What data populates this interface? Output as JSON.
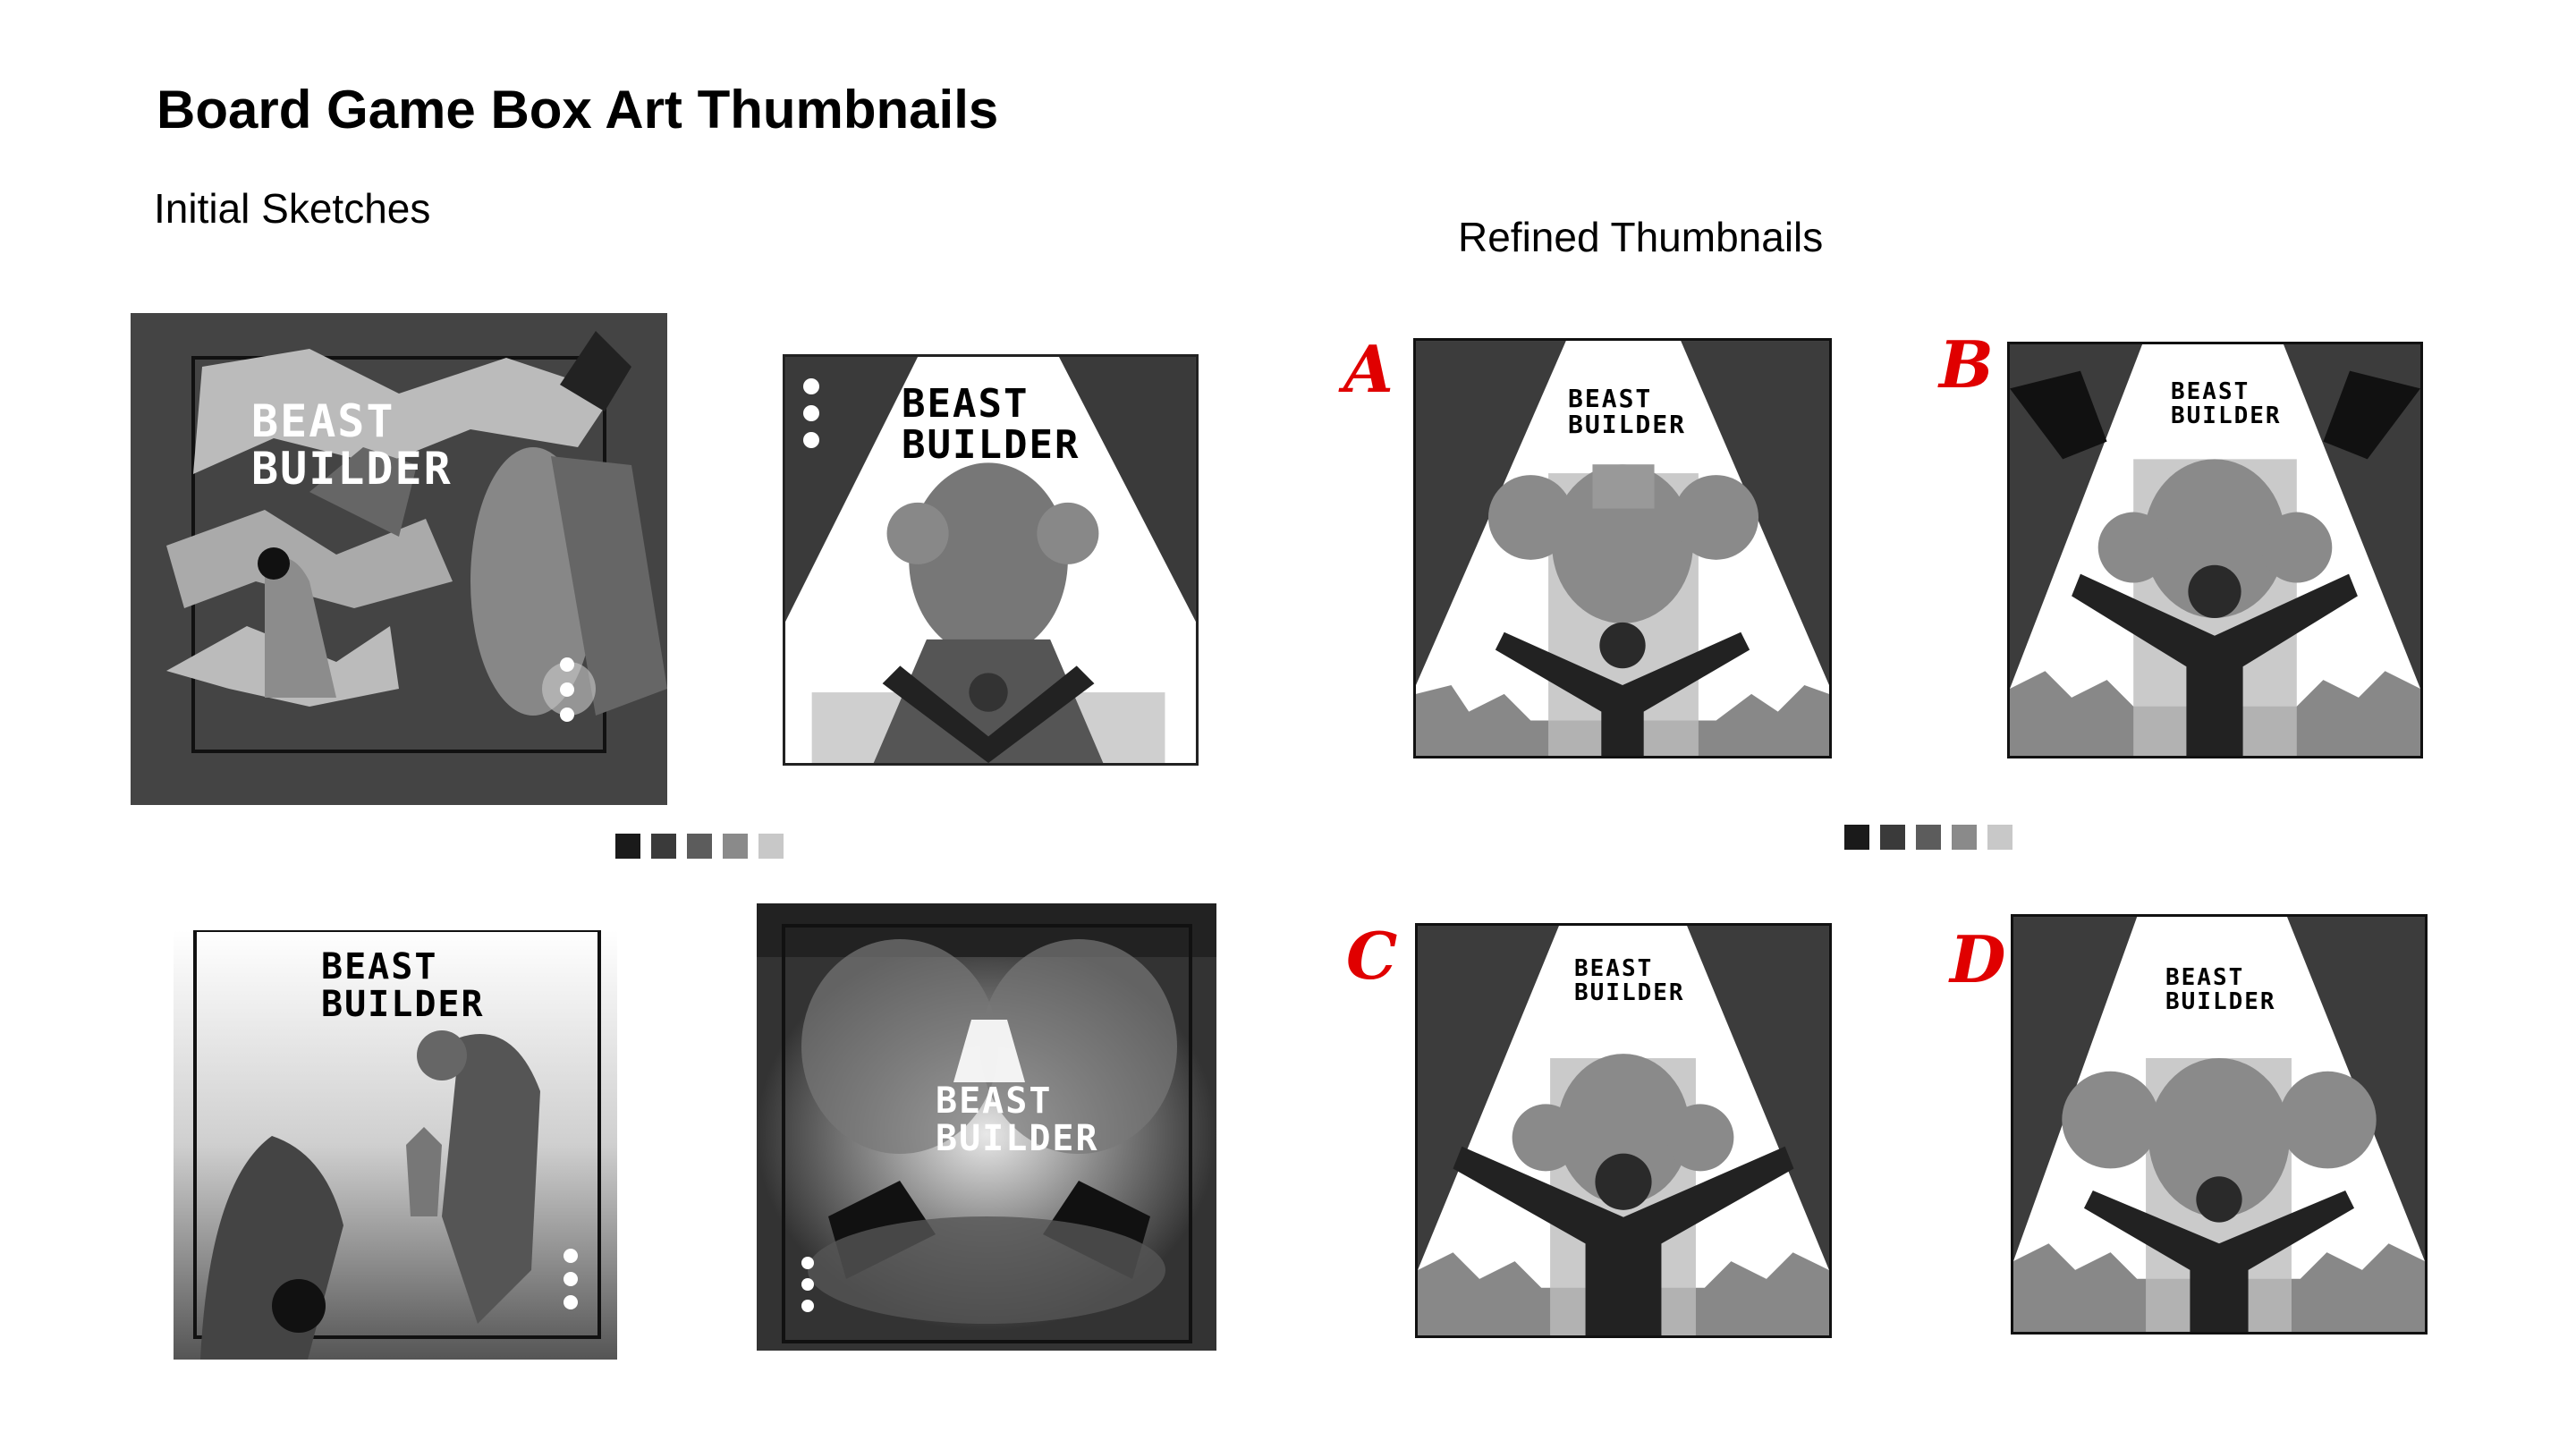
{
  "title": "Board Game Box Art Thumbnails",
  "sections": {
    "initial": "Initial Sketches",
    "refined": "Refined Thumbnails"
  },
  "artwork_text": {
    "line1": "BEAST",
    "line2": "BUILDER"
  },
  "variants": [
    "A",
    "B",
    "C",
    "D"
  ],
  "palette": [
    "#1a1a1a",
    "#3a3a3a",
    "#5c5c5c",
    "#8a8a8a",
    "#c8c8c8"
  ],
  "colors": {
    "accent_label": "#e00000"
  }
}
